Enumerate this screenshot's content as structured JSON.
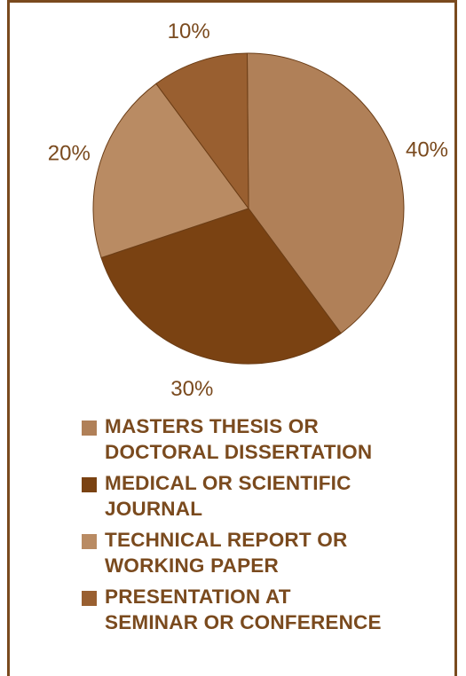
{
  "chart_data": {
    "type": "pie",
    "slices": [
      {
        "name": "MASTERS THESIS OR\nDOCTORAL DISSERTATION",
        "value": 40,
        "label": "40%",
        "color": "#b08058"
      },
      {
        "name": "MEDICAL OR SCIENTIFIC\nJOURNAL",
        "value": 30,
        "label": "30%",
        "color": "#7a4212"
      },
      {
        "name": "TECHNICAL REPORT OR\nWORKING PAPER",
        "value": 20,
        "label": "20%",
        "color": "#b98b63"
      },
      {
        "name": "PRESENTATION AT\nSEMINAR OR CONFERENCE",
        "value": 10,
        "label": "10%",
        "color": "#995f30"
      }
    ],
    "legend_position": "bottom"
  },
  "colors": {
    "frame": "#7a4a1e",
    "text": "#7a4a1e",
    "slice_edge": "#6b3d16"
  }
}
